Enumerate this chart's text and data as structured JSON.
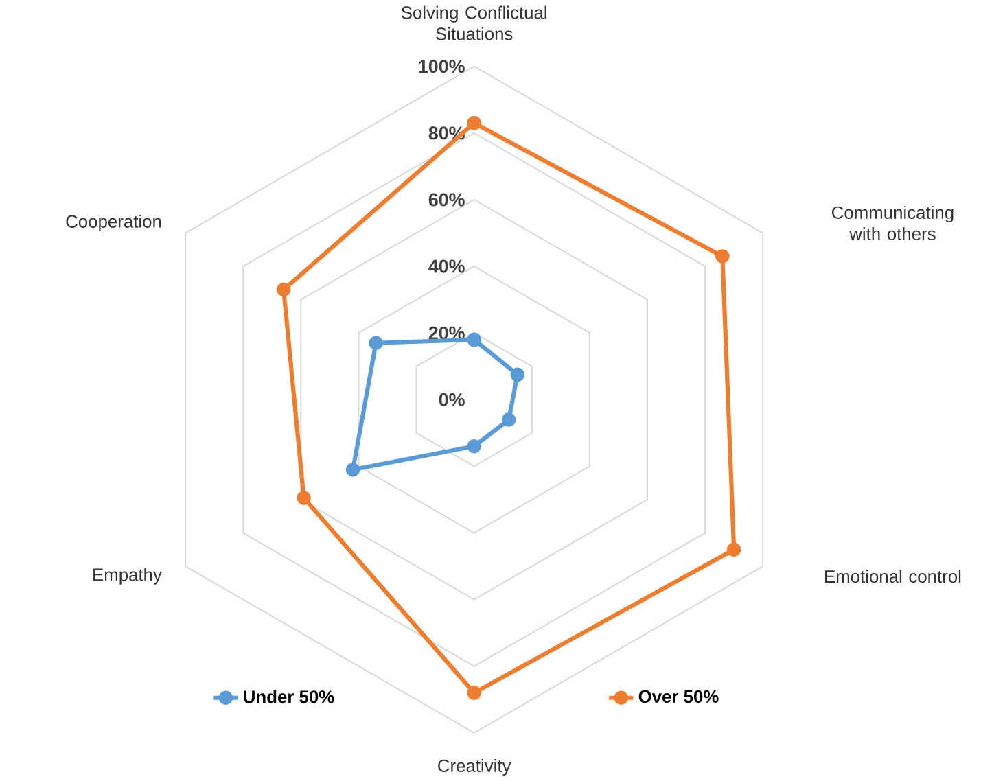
{
  "chart_data": {
    "type": "radar",
    "categories": [
      "Solving Conflictual Situations",
      "Communicating with others",
      "Emotional control",
      "Creativity",
      "Empathy",
      "Cooperation"
    ],
    "series": [
      {
        "name": "Under 50%",
        "color": "#5b9bd5",
        "values": [
          18,
          15,
          12,
          14,
          42,
          34
        ]
      },
      {
        "name": "Over 50%",
        "color": "#ed7d31",
        "values": [
          83,
          86,
          90,
          88,
          59,
          66
        ]
      }
    ],
    "ylim": [
      0,
      100
    ],
    "yticks": [
      {
        "value": 0,
        "label": "0%"
      },
      {
        "value": 20,
        "label": "20%"
      },
      {
        "value": 40,
        "label": "40%"
      },
      {
        "value": 60,
        "label": "60%"
      },
      {
        "value": 80,
        "label": "80%"
      },
      {
        "value": 100,
        "label": "100%"
      }
    ],
    "grid": true,
    "legend": "bottom",
    "marker": "circle"
  }
}
